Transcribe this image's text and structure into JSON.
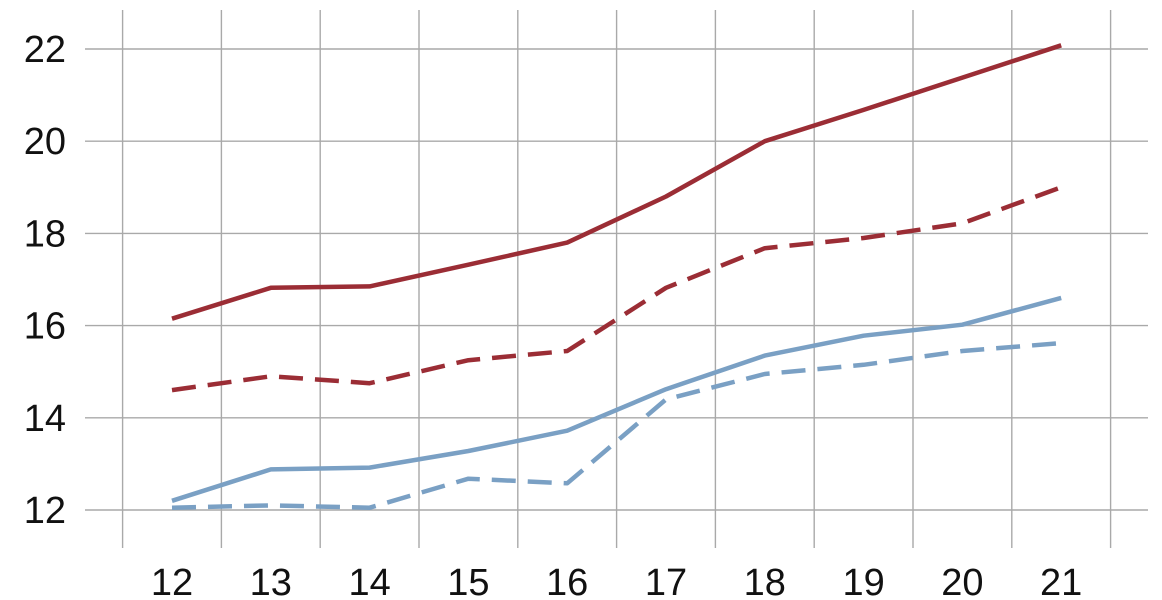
{
  "chart_data": {
    "type": "line",
    "title": "",
    "xlabel": "",
    "ylabel": "",
    "grid": true,
    "legend": "none",
    "x": [
      12,
      13,
      14,
      15,
      16,
      17,
      18,
      19,
      20,
      21
    ],
    "xticks": [
      "12",
      "13",
      "14",
      "15",
      "16",
      "17",
      "18",
      "19",
      "20",
      "21"
    ],
    "yticks": [
      "12",
      "14",
      "16",
      "18",
      "20",
      "22"
    ],
    "xlim": [
      11.5,
      21.5
    ],
    "ylim": [
      11.2,
      23.0
    ],
    "series": [
      {
        "color": "#9b2d35",
        "dash": "solid",
        "values": [
          16.15,
          16.82,
          16.85,
          17.32,
          17.8,
          18.8,
          20.0,
          20.68,
          21.38,
          22.08
        ]
      },
      {
        "color": "#9b2d35",
        "dash": "dashed",
        "values": [
          14.6,
          14.9,
          14.75,
          15.25,
          15.45,
          16.82,
          17.68,
          17.9,
          18.22,
          19.0
        ]
      },
      {
        "color": "#7aa0c4",
        "dash": "solid",
        "values": [
          12.2,
          12.88,
          12.92,
          13.28,
          13.72,
          14.62,
          15.35,
          15.78,
          16.02,
          16.6
        ]
      },
      {
        "color": "#7aa0c4",
        "dash": "dashed",
        "values": [
          12.05,
          12.1,
          12.05,
          12.68,
          12.58,
          14.4,
          14.95,
          15.15,
          15.45,
          15.62
        ]
      }
    ]
  }
}
